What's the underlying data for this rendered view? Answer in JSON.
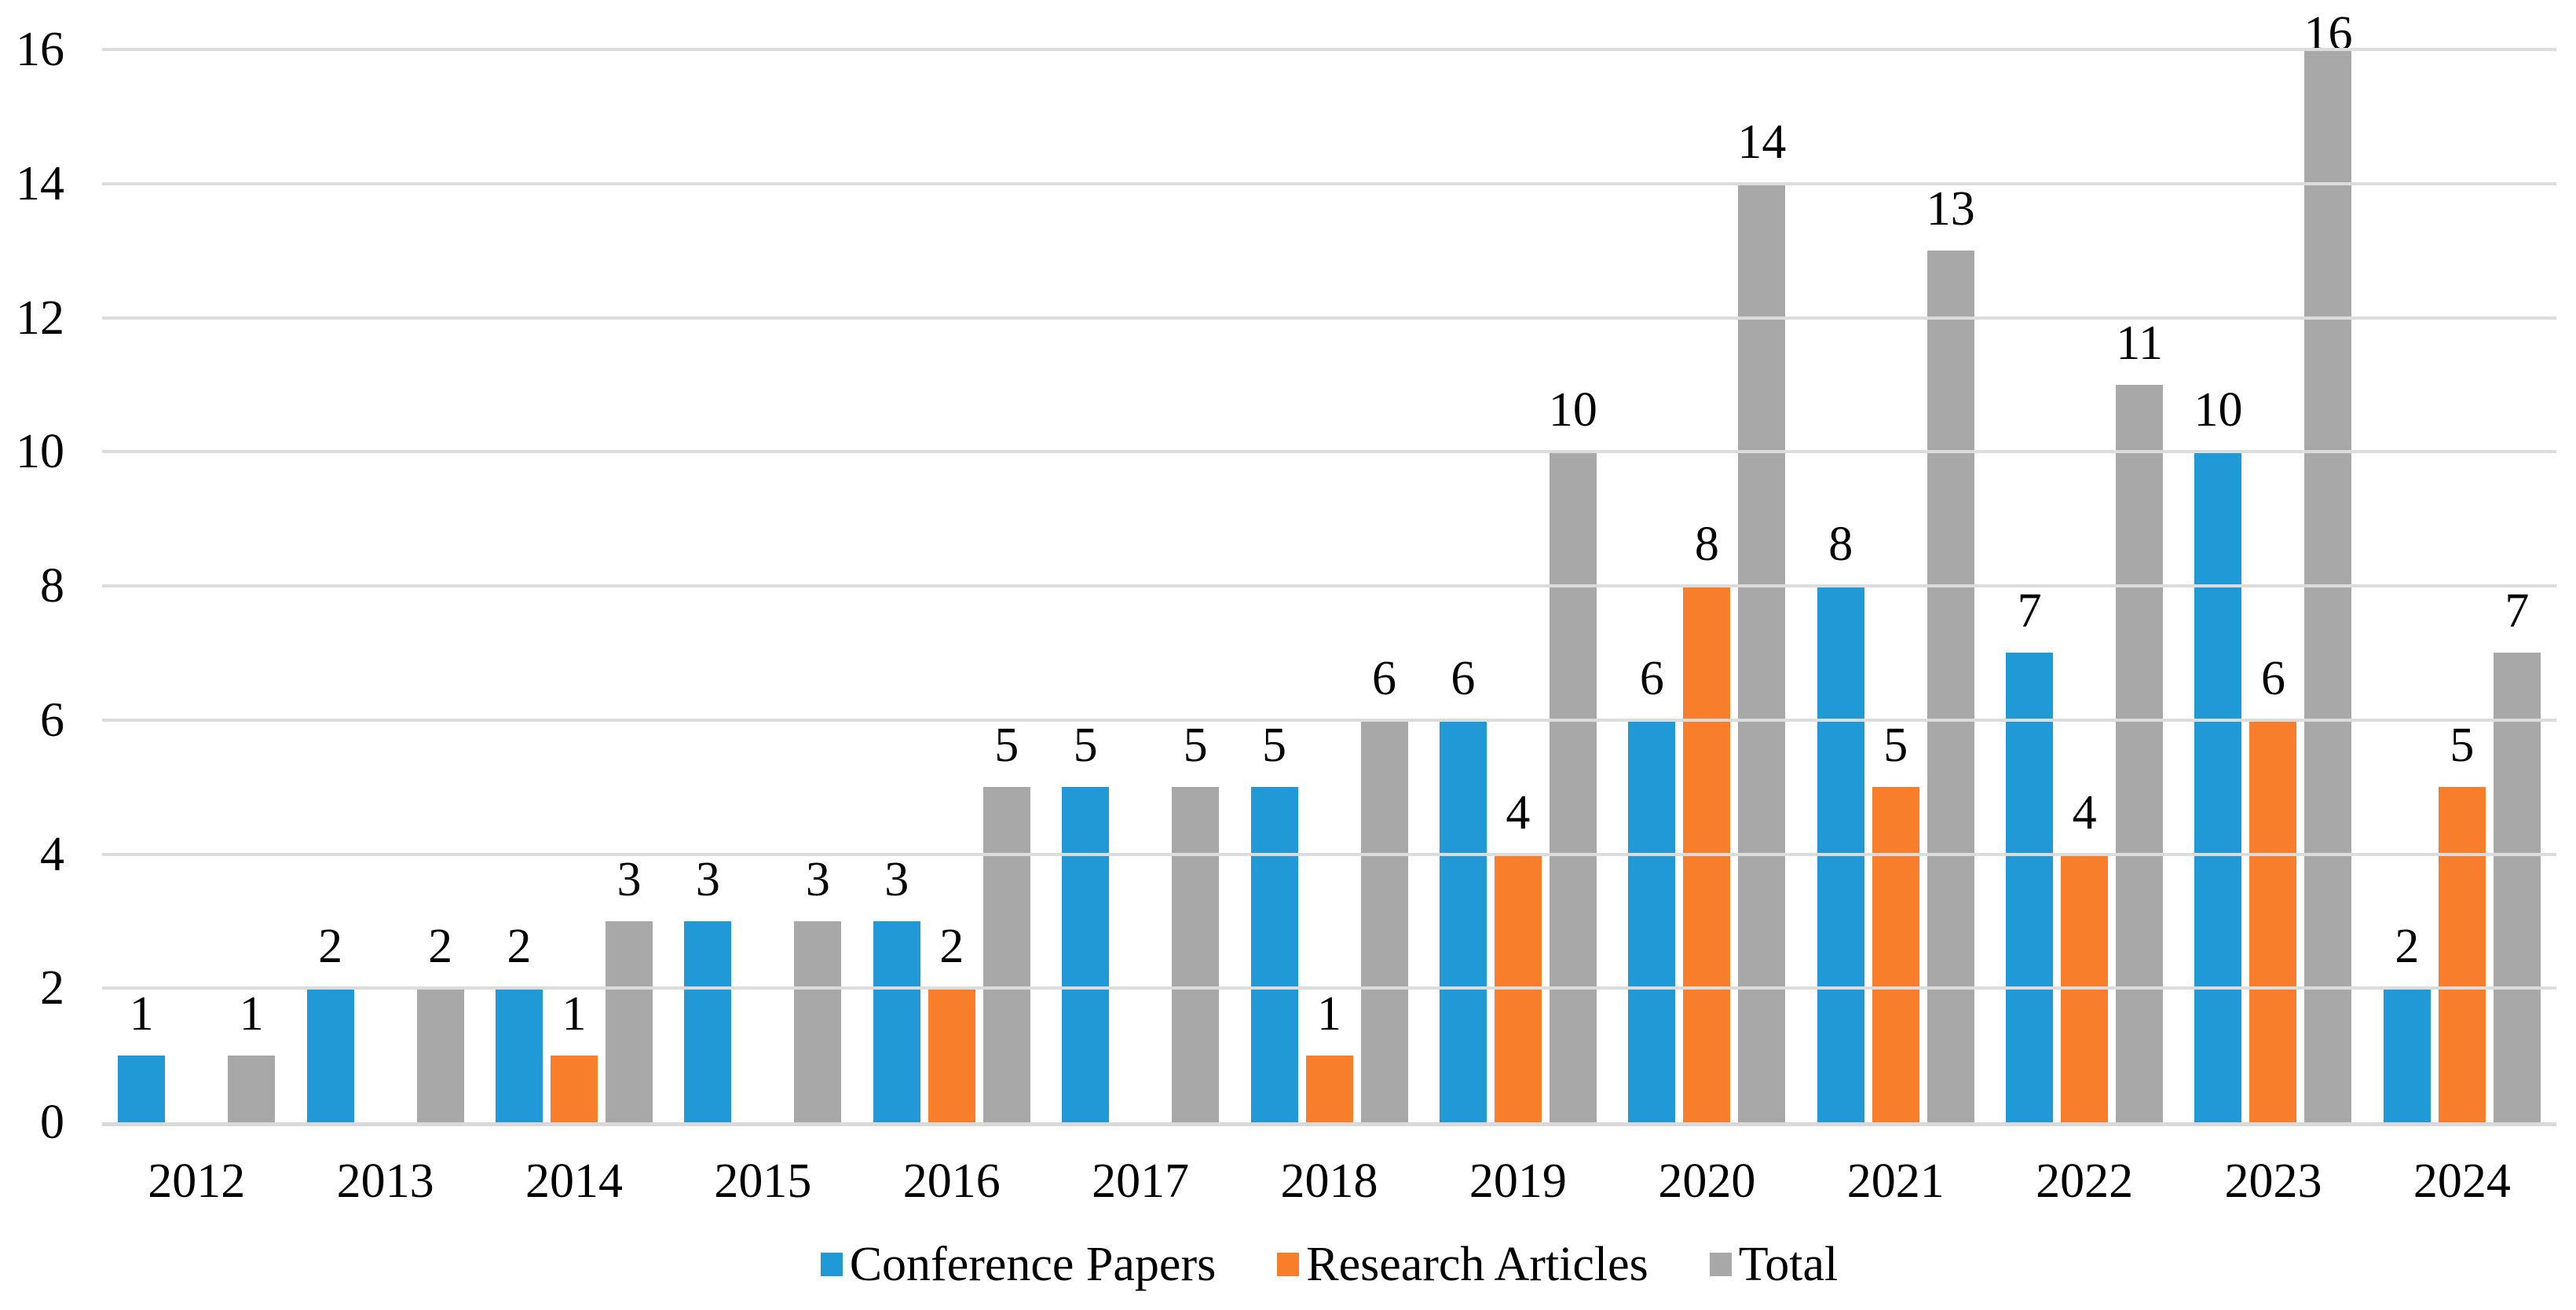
{
  "chart_data": {
    "type": "bar",
    "title": "",
    "xlabel": "",
    "ylabel": "",
    "categories": [
      "2012",
      "2013",
      "2014",
      "2015",
      "2016",
      "2017",
      "2018",
      "2019",
      "2020",
      "2021",
      "2022",
      "2023",
      "2024"
    ],
    "series": [
      {
        "name": "Conference Papers",
        "color": "#2199D6",
        "values": [
          1,
          2,
          2,
          3,
          3,
          5,
          5,
          6,
          6,
          8,
          7,
          10,
          2
        ]
      },
      {
        "name": "Research Articles",
        "color": "#F97E2B",
        "values": [
          0,
          0,
          1,
          0,
          2,
          0,
          1,
          4,
          8,
          5,
          4,
          6,
          5
        ]
      },
      {
        "name": "Total",
        "color": "#A8A8A8",
        "values": [
          1,
          2,
          3,
          3,
          5,
          5,
          6,
          10,
          14,
          13,
          11,
          16,
          7
        ]
      }
    ],
    "ylim": [
      0,
      16
    ],
    "yticks": [
      0,
      2,
      4,
      6,
      8,
      10,
      12,
      14,
      16
    ],
    "grid": "horizontal",
    "gridline_color": "#DCDCDC",
    "axis_line_color": "#D9D9D9",
    "text_color": "#000000",
    "data_labels": "shown above bars, hidden for zero values",
    "legend_position": "bottom-center"
  }
}
